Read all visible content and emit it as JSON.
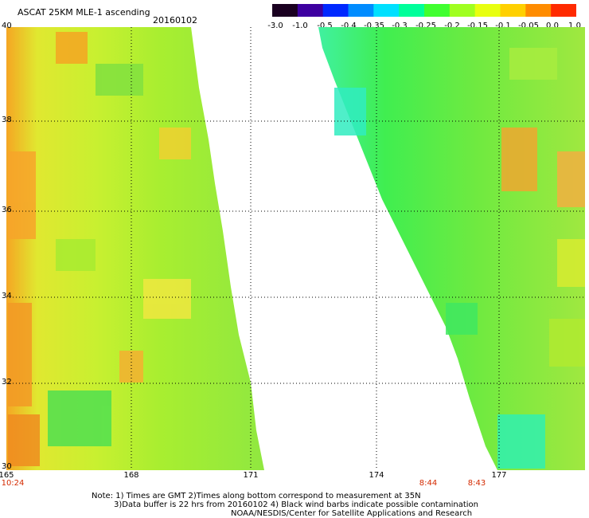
{
  "header": {
    "title": "ASCAT 25KM MLE-1 ascending",
    "date": "20160102"
  },
  "colorbar": {
    "labels": [
      "-3.0",
      "-1.0",
      "-0.5",
      "-0.4",
      "-0.35",
      "-0.3",
      "-0.25",
      "-0.2",
      "-0.15",
      "-0.1",
      "-0.05",
      "0.0",
      "1.0"
    ],
    "colors": [
      "#1a0020",
      "#3d00a0",
      "#0028ff",
      "#008cff",
      "#00e0ff",
      "#00ff9a",
      "#40ff30",
      "#a0ff20",
      "#e8ff10",
      "#ffd000",
      "#ff8c00",
      "#ff2a00"
    ]
  },
  "map": {
    "lat_labels": [
      "40",
      "38",
      "36",
      "34",
      "32",
      "30"
    ],
    "lon_labels": [
      "165",
      "168",
      "171",
      "174",
      "177"
    ],
    "time_labels": [
      "10:24",
      "8:44",
      "8:43"
    ]
  },
  "notes": {
    "line1": "Note: 1) Times are GMT 2)Times along bottom correspond to measurement at 35N",
    "line2": "3)Data buffer is 22 hrs from 20160102 4) Black wind barbs indicate possible contamination",
    "line3": "NOAA/NESDIS/Center for Satellite Applications and Research"
  }
}
